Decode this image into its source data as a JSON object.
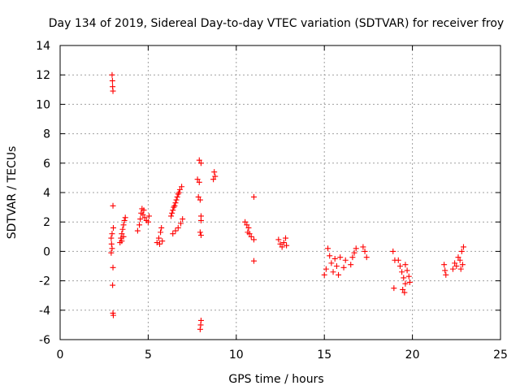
{
  "chart_data": {
    "type": "scatter",
    "title": "Day 134 of 2019, Sidereal Day-to-day VTEC variation (SDTVAR) for receiver froy",
    "xlabel": "GPS time / hours",
    "ylabel": "SDTVAR / TECUs",
    "xlim": [
      0,
      25
    ],
    "ylim": [
      -6,
      14
    ],
    "xticks": [
      0,
      5,
      10,
      15,
      20,
      25
    ],
    "yticks": [
      -6,
      -4,
      -2,
      0,
      2,
      4,
      6,
      8,
      10,
      12,
      14
    ],
    "grid": true,
    "marker": "+",
    "marker_color": "#ff0000",
    "series": [
      {
        "name": "SDTVAR",
        "points": [
          [
            2.95,
            12.0
          ],
          [
            2.97,
            11.6
          ],
          [
            2.98,
            11.2
          ],
          [
            3.0,
            10.9
          ],
          [
            3.0,
            3.1
          ],
          [
            3.02,
            1.6
          ],
          [
            2.95,
            1.2
          ],
          [
            2.9,
            0.9
          ],
          [
            2.92,
            0.5
          ],
          [
            2.95,
            0.2
          ],
          [
            2.9,
            -0.1
          ],
          [
            3.0,
            -1.1
          ],
          [
            2.98,
            -2.3
          ],
          [
            3.0,
            -4.2
          ],
          [
            3.02,
            -4.35
          ],
          [
            3.4,
            0.6
          ],
          [
            3.45,
            0.9
          ],
          [
            3.5,
            1.2
          ],
          [
            3.55,
            1.5
          ],
          [
            3.6,
            1.8
          ],
          [
            3.65,
            2.1
          ],
          [
            3.7,
            2.3
          ],
          [
            3.5,
            0.7
          ],
          [
            3.6,
            1.0
          ],
          [
            4.4,
            1.4
          ],
          [
            4.5,
            1.8
          ],
          [
            4.55,
            2.2
          ],
          [
            4.6,
            2.6
          ],
          [
            4.65,
            2.9
          ],
          [
            4.7,
            2.5
          ],
          [
            4.8,
            2.3
          ],
          [
            4.9,
            2.1
          ],
          [
            5.0,
            2.0
          ],
          [
            5.05,
            2.4
          ],
          [
            4.75,
            2.8
          ],
          [
            5.5,
            0.6
          ],
          [
            5.6,
            0.9
          ],
          [
            5.7,
            1.3
          ],
          [
            5.75,
            1.6
          ],
          [
            5.65,
            0.5
          ],
          [
            5.8,
            0.7
          ],
          [
            6.3,
            2.4
          ],
          [
            6.4,
            2.8
          ],
          [
            6.5,
            3.1
          ],
          [
            6.6,
            3.5
          ],
          [
            6.7,
            3.9
          ],
          [
            6.8,
            4.2
          ],
          [
            6.9,
            4.4
          ],
          [
            6.35,
            2.6
          ],
          [
            6.45,
            3.0
          ],
          [
            6.55,
            3.3
          ],
          [
            6.65,
            3.7
          ],
          [
            6.75,
            4.0
          ],
          [
            6.4,
            1.2
          ],
          [
            6.55,
            1.4
          ],
          [
            6.7,
            1.6
          ],
          [
            6.85,
            1.9
          ],
          [
            6.95,
            2.2
          ],
          [
            7.8,
            4.9
          ],
          [
            7.9,
            4.7
          ],
          [
            7.85,
            3.7
          ],
          [
            7.95,
            3.5
          ],
          [
            8.0,
            2.4
          ],
          [
            8.0,
            2.1
          ],
          [
            7.95,
            1.3
          ],
          [
            8.0,
            1.1
          ],
          [
            7.9,
            6.2
          ],
          [
            8.0,
            6.0
          ],
          [
            8.0,
            -4.7
          ],
          [
            7.98,
            -5.0
          ],
          [
            7.95,
            -5.3
          ],
          [
            8.75,
            5.4
          ],
          [
            8.8,
            5.1
          ],
          [
            8.7,
            4.9
          ],
          [
            10.5,
            2.0
          ],
          [
            10.6,
            1.8
          ],
          [
            10.7,
            1.6
          ],
          [
            10.65,
            1.3
          ],
          [
            10.75,
            1.2
          ],
          [
            10.85,
            1.0
          ],
          [
            11.0,
            0.8
          ],
          [
            11.0,
            3.7
          ],
          [
            11.0,
            -0.65
          ],
          [
            12.4,
            0.8
          ],
          [
            12.5,
            0.5
          ],
          [
            12.6,
            0.3
          ],
          [
            12.7,
            0.6
          ],
          [
            12.8,
            0.9
          ],
          [
            12.85,
            0.4
          ],
          [
            15.0,
            -1.6
          ],
          [
            15.1,
            -1.2
          ],
          [
            15.2,
            0.2
          ],
          [
            15.3,
            -0.3
          ],
          [
            15.4,
            -0.8
          ],
          [
            15.5,
            -1.4
          ],
          [
            15.6,
            -0.5
          ],
          [
            15.7,
            -1.0
          ],
          [
            15.8,
            -1.6
          ],
          [
            15.9,
            -0.4
          ],
          [
            16.1,
            -1.1
          ],
          [
            16.2,
            -0.6
          ],
          [
            16.5,
            -0.9
          ],
          [
            16.6,
            -0.4
          ],
          [
            16.7,
            -0.1
          ],
          [
            16.8,
            0.2
          ],
          [
            17.2,
            0.3
          ],
          [
            17.3,
            0.0
          ],
          [
            17.4,
            -0.4
          ],
          [
            18.9,
            0.0
          ],
          [
            19.0,
            -0.6
          ],
          [
            18.95,
            -2.5
          ],
          [
            19.2,
            -0.6
          ],
          [
            19.3,
            -1.0
          ],
          [
            19.4,
            -1.4
          ],
          [
            19.5,
            -1.8
          ],
          [
            19.6,
            -2.2
          ],
          [
            19.45,
            -2.6
          ],
          [
            19.55,
            -2.8
          ],
          [
            19.6,
            -0.9
          ],
          [
            19.7,
            -1.3
          ],
          [
            19.8,
            -1.7
          ],
          [
            19.85,
            -2.1
          ],
          [
            21.8,
            -0.9
          ],
          [
            21.85,
            -1.3
          ],
          [
            21.9,
            -1.6
          ],
          [
            22.3,
            -1.2
          ],
          [
            22.4,
            -0.8
          ],
          [
            22.5,
            -1.0
          ],
          [
            22.6,
            -0.4
          ],
          [
            22.7,
            -0.6
          ],
          [
            22.8,
            0.0
          ],
          [
            22.9,
            0.3
          ],
          [
            22.85,
            -0.9
          ],
          [
            22.75,
            -1.2
          ]
        ]
      }
    ]
  }
}
